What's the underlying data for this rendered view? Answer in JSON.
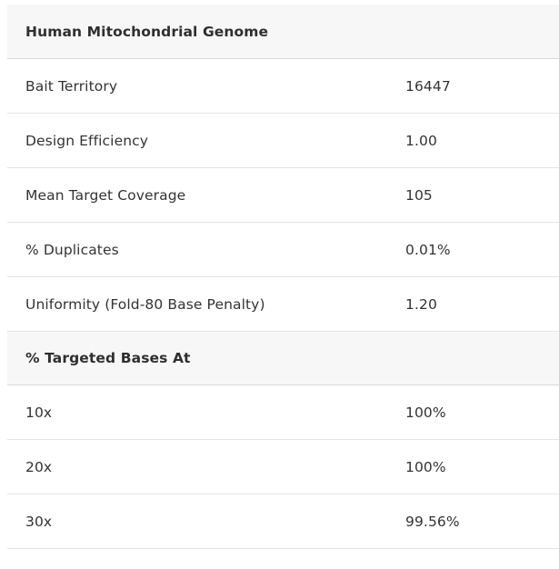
{
  "sections": [
    {
      "title": "Human Mitochondrial Genome",
      "rows": [
        {
          "label": "Bait Territory",
          "value": "16447"
        },
        {
          "label": "Design Efficiency",
          "value": "1.00"
        },
        {
          "label": "Mean Target Coverage",
          "value": "105"
        },
        {
          "label": "% Duplicates",
          "value": "0.01%"
        },
        {
          "label": "Uniformity (Fold-80 Base Penalty)",
          "value": "1.20"
        }
      ]
    },
    {
      "title": "% Targeted Bases At",
      "rows": [
        {
          "label": "10x",
          "value": "100%"
        },
        {
          "label": "20x",
          "value": "100%"
        },
        {
          "label": "30x",
          "value": "99.56%"
        }
      ]
    }
  ]
}
